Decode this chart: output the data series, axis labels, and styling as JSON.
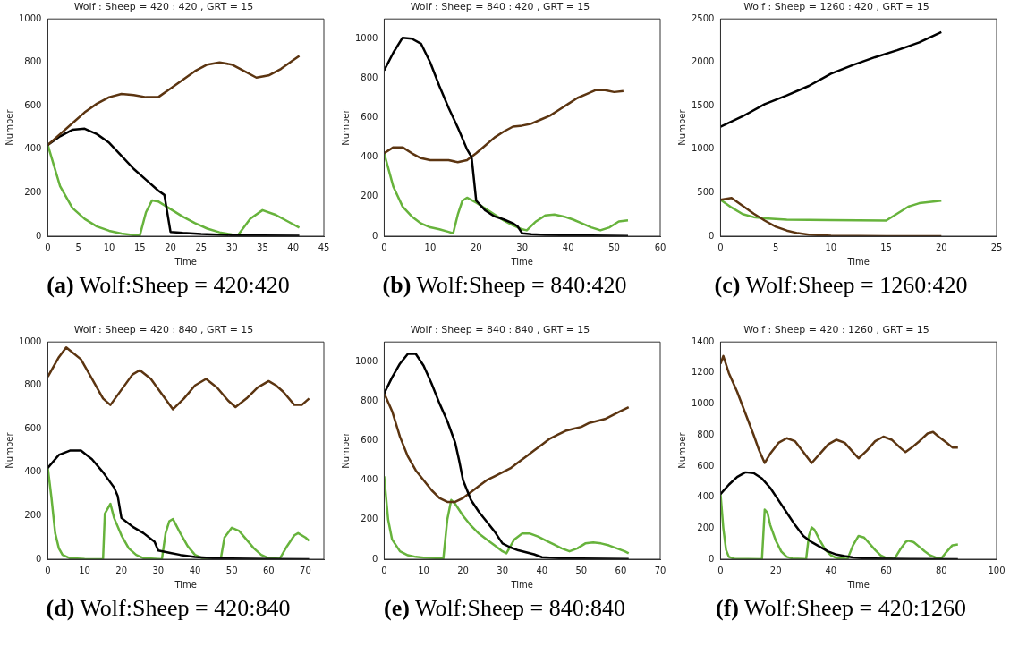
{
  "chart_data": [
    {
      "type": "line",
      "title": "Wolf : Sheep = 420 : 420 , GRT = 15",
      "xlabel": "Time",
      "ylabel": "Number",
      "xlim": [
        0,
        45
      ],
      "xticks": [
        0,
        5,
        10,
        15,
        20,
        25,
        30,
        35,
        40,
        45
      ],
      "ylim": [
        0,
        1000
      ],
      "yticks": [
        0,
        200,
        400,
        600,
        800,
        1000
      ],
      "grid": false,
      "legend": false,
      "marker": "none",
      "annotations": [
        "(a) Wolf:Sheep = 420:420"
      ],
      "series": [
        {
          "color": "#5c3511",
          "x": [
            0,
            2,
            4,
            6,
            8,
            10,
            12,
            14,
            16,
            18,
            20,
            22,
            24,
            26,
            28,
            30,
            32,
            34,
            36,
            38,
            40,
            41
          ],
          "values": [
            420,
            470,
            520,
            570,
            610,
            640,
            655,
            650,
            640,
            640,
            680,
            720,
            760,
            790,
            800,
            790,
            760,
            730,
            740,
            770,
            810,
            830
          ]
        },
        {
          "color": "#000000",
          "x": [
            0,
            2,
            4,
            6,
            8,
            10,
            12,
            14,
            16,
            18,
            19,
            20,
            22,
            25,
            30,
            35,
            41
          ],
          "values": [
            420,
            460,
            490,
            495,
            470,
            430,
            370,
            310,
            260,
            210,
            190,
            20,
            15,
            10,
            5,
            3,
            2
          ]
        },
        {
          "color": "#67b33c",
          "x": [
            0,
            2,
            4,
            6,
            8,
            10,
            12,
            14,
            15,
            16,
            17,
            18,
            20,
            22,
            24,
            26,
            28,
            30,
            31,
            33,
            35,
            37,
            39,
            41
          ],
          "values": [
            420,
            230,
            130,
            80,
            45,
            25,
            12,
            5,
            3,
            110,
            165,
            160,
            125,
            90,
            60,
            35,
            18,
            8,
            5,
            80,
            120,
            100,
            70,
            40
          ]
        }
      ]
    },
    {
      "type": "line",
      "title": "Wolf : Sheep = 840 : 420 , GRT = 15",
      "xlabel": "Time",
      "ylabel": "Number",
      "xlim": [
        0,
        60
      ],
      "xticks": [
        0,
        10,
        20,
        30,
        40,
        50,
        60
      ],
      "ylim": [
        0,
        1100
      ],
      "yticks": [
        0,
        200,
        400,
        600,
        800,
        1000
      ],
      "grid": false,
      "legend": false,
      "marker": "none",
      "annotations": [
        "(b) Wolf:Sheep = 840:420"
      ],
      "series": [
        {
          "color": "#000000",
          "x": [
            0,
            2,
            4,
            6,
            8,
            10,
            12,
            14,
            16,
            18,
            19,
            20,
            22,
            24,
            26,
            28,
            29,
            30,
            32,
            35,
            40,
            45,
            53
          ],
          "values": [
            840,
            930,
            1005,
            1000,
            975,
            880,
            760,
            650,
            550,
            440,
            400,
            180,
            130,
            100,
            85,
            65,
            50,
            15,
            10,
            7,
            5,
            3,
            1
          ]
        },
        {
          "color": "#5c3511",
          "x": [
            0,
            2,
            4,
            6,
            8,
            10,
            12,
            14,
            16,
            18,
            20,
            22,
            24,
            26,
            28,
            30,
            32,
            34,
            36,
            38,
            40,
            42,
            44,
            46,
            48,
            50,
            52
          ],
          "values": [
            420,
            450,
            450,
            420,
            395,
            385,
            385,
            385,
            375,
            385,
            420,
            460,
            500,
            530,
            555,
            560,
            570,
            590,
            610,
            640,
            670,
            700,
            720,
            740,
            740,
            730,
            735
          ]
        },
        {
          "color": "#67b33c",
          "x": [
            0,
            2,
            4,
            6,
            8,
            10,
            12,
            14,
            15,
            16,
            17,
            18,
            20,
            22,
            24,
            26,
            28,
            30,
            31,
            33,
            35,
            37,
            39,
            41,
            43,
            45,
            47,
            49,
            51,
            53
          ],
          "values": [
            420,
            250,
            150,
            100,
            65,
            45,
            35,
            22,
            15,
            110,
            180,
            195,
            170,
            140,
            110,
            80,
            55,
            35,
            30,
            75,
            105,
            110,
            100,
            85,
            65,
            45,
            30,
            45,
            75,
            80
          ]
        }
      ]
    },
    {
      "type": "line",
      "title": "Wolf : Sheep = 1260 : 420 , GRT = 15",
      "xlabel": "Time",
      "ylabel": "Number",
      "xlim": [
        0,
        25
      ],
      "xticks": [
        0,
        5,
        10,
        15,
        20,
        25
      ],
      "ylim": [
        0,
        2500
      ],
      "yticks": [
        0,
        500,
        1000,
        1500,
        2000,
        2500
      ],
      "grid": false,
      "legend": false,
      "marker": "none",
      "annotations": [
        "(c) Wolf:Sheep = 1260:420"
      ],
      "series": [
        {
          "color": "#000000",
          "x": [
            0,
            2,
            4,
            6,
            8,
            10,
            12,
            14,
            16,
            18,
            20
          ],
          "values": [
            1260,
            1380,
            1520,
            1620,
            1730,
            1870,
            1970,
            2060,
            2140,
            2230,
            2350
          ]
        },
        {
          "color": "#5c3511",
          "x": [
            0,
            1,
            2,
            3,
            4,
            5,
            6,
            7,
            8,
            10,
            15,
            20
          ],
          "values": [
            420,
            440,
            350,
            260,
            180,
            110,
            65,
            35,
            18,
            5,
            1,
            0
          ]
        },
        {
          "color": "#67b33c",
          "x": [
            0,
            1,
            2,
            3,
            4,
            6,
            10,
            15,
            16,
            17,
            18,
            20
          ],
          "values": [
            420,
            330,
            255,
            220,
            205,
            190,
            185,
            180,
            260,
            340,
            380,
            410
          ]
        }
      ]
    },
    {
      "type": "line",
      "title": "Wolf : Sheep = 420 : 840 , GRT = 15",
      "xlabel": "Time",
      "ylabel": "Number",
      "xlim": [
        0,
        75
      ],
      "xticks": [
        0,
        10,
        20,
        30,
        40,
        50,
        60,
        70
      ],
      "ylim": [
        0,
        1000
      ],
      "yticks": [
        0,
        200,
        400,
        600,
        800,
        1000
      ],
      "grid": false,
      "legend": false,
      "marker": "none",
      "annotations": [
        "(d) Wolf:Sheep = 420:840"
      ],
      "series": [
        {
          "color": "#5c3511",
          "x": [
            0,
            3,
            5,
            9,
            12,
            15,
            17,
            20,
            23,
            25,
            28,
            31,
            34,
            37,
            40,
            43,
            46,
            49,
            51,
            54,
            57,
            60,
            62,
            64,
            67,
            69,
            71
          ],
          "values": [
            840,
            930,
            975,
            920,
            830,
            740,
            710,
            780,
            850,
            870,
            830,
            760,
            690,
            740,
            800,
            830,
            790,
            730,
            700,
            740,
            790,
            820,
            800,
            770,
            710,
            710,
            740
          ]
        },
        {
          "color": "#000000",
          "x": [
            0,
            3,
            6,
            9,
            12,
            15,
            18,
            19,
            20,
            23,
            26,
            29,
            30,
            33,
            36,
            40,
            45,
            50,
            60,
            71
          ],
          "values": [
            420,
            480,
            500,
            500,
            460,
            400,
            330,
            290,
            190,
            150,
            120,
            80,
            40,
            30,
            20,
            10,
            5,
            3,
            1,
            0
          ]
        },
        {
          "color": "#67b33c",
          "x": [
            0,
            1,
            2,
            3,
            4,
            6,
            10,
            15,
            15.5,
            17,
            18,
            20,
            22,
            24,
            26,
            30,
            31,
            32,
            33,
            34,
            36,
            38,
            40,
            42,
            47,
            48,
            50,
            52,
            54,
            56,
            58,
            60,
            63,
            65,
            67,
            68,
            70,
            71
          ],
          "values": [
            420,
            280,
            120,
            50,
            20,
            5,
            1,
            0,
            210,
            255,
            190,
            110,
            50,
            20,
            5,
            1,
            0,
            120,
            175,
            185,
            120,
            60,
            20,
            5,
            2,
            100,
            145,
            130,
            90,
            50,
            20,
            5,
            2,
            60,
            110,
            120,
            100,
            85
          ]
        }
      ]
    },
    {
      "type": "line",
      "title": "Wolf : Sheep = 840 : 840 , GRT = 15",
      "xlabel": "Time",
      "ylabel": "Number",
      "xlim": [
        0,
        70
      ],
      "xticks": [
        0,
        10,
        20,
        30,
        40,
        50,
        60,
        70
      ],
      "ylim": [
        0,
        1100
      ],
      "yticks": [
        0,
        200,
        400,
        600,
        800,
        1000
      ],
      "grid": false,
      "legend": false,
      "marker": "none",
      "annotations": [
        "(e) Wolf:Sheep = 840:840"
      ],
      "series": [
        {
          "color": "#000000",
          "x": [
            0,
            2,
            4,
            6,
            8,
            10,
            12,
            14,
            16,
            18,
            19,
            20,
            22,
            24,
            26,
            28,
            30,
            32,
            34,
            36,
            38,
            40,
            45,
            50,
            62
          ],
          "values": [
            840,
            920,
            990,
            1040,
            1040,
            980,
            890,
            790,
            700,
            590,
            500,
            400,
            300,
            240,
            190,
            140,
            80,
            60,
            45,
            35,
            25,
            10,
            5,
            3,
            1
          ]
        },
        {
          "color": "#5c3511",
          "x": [
            0,
            2,
            4,
            6,
            8,
            10,
            12,
            14,
            16,
            18,
            20,
            22,
            24,
            26,
            28,
            30,
            32,
            34,
            36,
            38,
            40,
            42,
            44,
            46,
            48,
            50,
            52,
            54,
            56,
            58,
            60,
            62
          ],
          "values": [
            840,
            750,
            620,
            520,
            450,
            400,
            350,
            310,
            290,
            290,
            310,
            340,
            370,
            400,
            420,
            440,
            460,
            490,
            520,
            550,
            580,
            610,
            630,
            650,
            660,
            670,
            690,
            700,
            710,
            730,
            750,
            770
          ]
        },
        {
          "color": "#67b33c",
          "x": [
            0,
            1,
            2,
            4,
            6,
            8,
            10,
            14,
            15,
            16,
            17,
            18,
            20,
            22,
            24,
            26,
            28,
            30,
            31,
            33,
            35,
            37,
            39,
            41,
            43,
            45,
            47,
            49,
            51,
            53,
            55,
            57,
            59,
            61,
            62
          ],
          "values": [
            420,
            200,
            100,
            40,
            20,
            12,
            8,
            5,
            3,
            200,
            300,
            280,
            220,
            170,
            130,
            100,
            70,
            40,
            30,
            100,
            130,
            130,
            115,
            95,
            75,
            55,
            40,
            55,
            80,
            85,
            80,
            70,
            55,
            40,
            30
          ]
        }
      ]
    },
    {
      "type": "line",
      "title": "Wolf : Sheep = 420 : 1260 , GRT = 15",
      "xlabel": "Time",
      "ylabel": "Number",
      "xlim": [
        0,
        100
      ],
      "xticks": [
        0,
        20,
        40,
        60,
        80,
        100
      ],
      "ylim": [
        0,
        1400
      ],
      "yticks": [
        0,
        200,
        400,
        600,
        800,
        1000,
        1200,
        1400
      ],
      "grid": false,
      "legend": false,
      "marker": "none",
      "annotations": [
        "(f) Wolf:Sheep = 420:1260"
      ],
      "series": [
        {
          "color": "#5c3511",
          "x": [
            0,
            1,
            3,
            6,
            9,
            12,
            14,
            16,
            18,
            21,
            24,
            27,
            30,
            33,
            36,
            39,
            42,
            45,
            48,
            50,
            53,
            56,
            59,
            62,
            65,
            67,
            70,
            72,
            75,
            77,
            79,
            82,
            84,
            86
          ],
          "values": [
            1260,
            1310,
            1200,
            1080,
            940,
            800,
            700,
            620,
            680,
            750,
            780,
            760,
            690,
            620,
            680,
            740,
            770,
            750,
            690,
            650,
            700,
            760,
            790,
            770,
            720,
            690,
            730,
            760,
            810,
            820,
            790,
            750,
            720,
            720
          ]
        },
        {
          "color": "#000000",
          "x": [
            0,
            3,
            6,
            9,
            12,
            15,
            18,
            21,
            24,
            27,
            30,
            33,
            36,
            39,
            42,
            45,
            48,
            52,
            60,
            70,
            86
          ],
          "values": [
            420,
            480,
            530,
            560,
            555,
            520,
            460,
            380,
            300,
            220,
            150,
            110,
            80,
            50,
            30,
            20,
            12,
            6,
            3,
            1,
            0
          ]
        },
        {
          "color": "#67b33c",
          "x": [
            0,
            1,
            2,
            3,
            5,
            10,
            15,
            16,
            17,
            18,
            20,
            22,
            24,
            26,
            30,
            31,
            32,
            33,
            34,
            36,
            38,
            40,
            42,
            46,
            48,
            50,
            52,
            54,
            56,
            58,
            60,
            63,
            65,
            67,
            68,
            70,
            72,
            74,
            76,
            78,
            80,
            82,
            84,
            86
          ],
          "values": [
            420,
            200,
            60,
            15,
            3,
            1,
            0,
            320,
            300,
            220,
            120,
            50,
            15,
            5,
            1,
            0,
            150,
            205,
            190,
            120,
            60,
            25,
            8,
            2,
            90,
            150,
            140,
            100,
            60,
            25,
            8,
            2,
            60,
            110,
            120,
            110,
            80,
            50,
            25,
            10,
            5,
            50,
            90,
            95
          ]
        }
      ]
    }
  ]
}
